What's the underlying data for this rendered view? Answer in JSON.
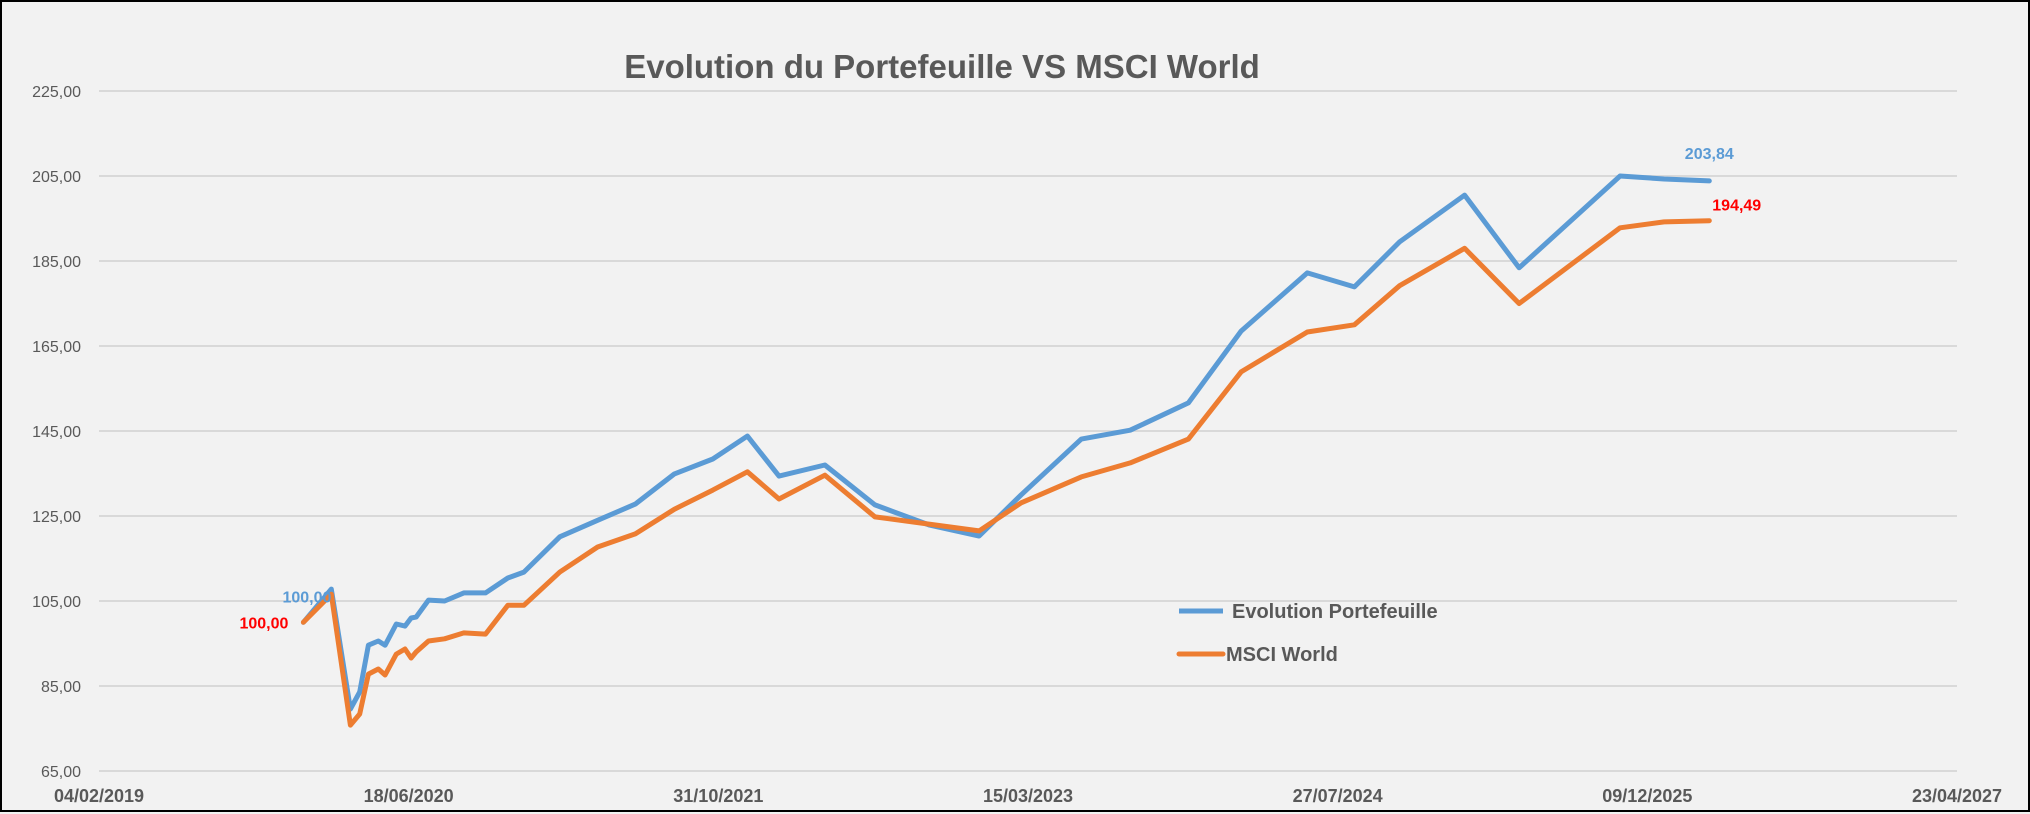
{
  "chart_data": {
    "type": "line",
    "title": "Evolution du Portefeuille VS MSCI World",
    "xlabel": "",
    "ylabel": "",
    "ylim": [
      65,
      225
    ],
    "xlim": [
      "04/02/2019",
      "23/04/2027"
    ],
    "y_ticks": [
      "65,00",
      "85,00",
      "105,00",
      "125,00",
      "145,00",
      "165,00",
      "185,00",
      "205,00",
      "225,00"
    ],
    "x_ticks": [
      "04/02/2019",
      "18/06/2020",
      "31/10/2021",
      "15/03/2023",
      "27/07/2024",
      "09/12/2025",
      "23/04/2027"
    ],
    "grid": "horizontal",
    "legend_position": "center-right",
    "x": [
      "31/12/2019",
      "14/02/2020",
      "16/03/2020",
      "31/03/2020",
      "14/04/2020",
      "30/04/2020",
      "11/05/2020",
      "29/05/2020",
      "12/06/2020",
      "22/06/2020",
      "30/06/2020",
      "20/07/2020",
      "15/08/2020",
      "15/09/2020",
      "20/10/2020",
      "25/11/2020",
      "21/12/2020",
      "17/02/2021",
      "19/04/2021",
      "19/06/2021",
      "21/08/2021",
      "22/10/2021",
      "17/12/2021",
      "06/02/2022",
      "21/04/2022",
      "11/07/2022",
      "06/10/2022",
      "26/12/2022",
      "04/03/2023",
      "09/06/2023",
      "27/08/2023",
      "29/11/2023",
      "22/02/2024",
      "08/06/2024",
      "23/08/2024",
      "04/11/2024",
      "17/02/2025",
      "16/05/2025",
      "26/10/2025",
      "05/01/2026",
      "19/03/2026"
    ],
    "series": [
      {
        "name": "Evolution Portefeuille",
        "color": "#5b9bd5",
        "values": [
          100,
          107.8,
          79.6,
          83.6,
          94.6,
          95.6,
          94.6,
          99.6,
          99.1,
          101,
          101.2,
          105.2,
          105,
          106.9,
          106.9,
          110.4,
          111.8,
          120.1,
          124,
          127.8,
          134.9,
          138.4,
          143.8,
          134.4,
          137,
          127.6,
          122.9,
          120.3,
          130,
          143.1,
          145.2,
          151.6,
          168.5,
          182.2,
          178.9,
          189.5,
          200.5,
          183.4,
          205,
          204.3,
          203.84
        ],
        "data_labels": [
          {
            "index": 0,
            "text": "100,00",
            "color": "#5b9bd5"
          },
          {
            "index": 40,
            "text": "203,84",
            "color": "#5b9bd5"
          }
        ]
      },
      {
        "name": "MSCI World",
        "color": "#ed7d31",
        "values": [
          100,
          106.6,
          75.8,
          78.4,
          87.8,
          89,
          87.6,
          92.5,
          93.7,
          91.6,
          93,
          95.6,
          96.1,
          97.5,
          97.2,
          104,
          104,
          111.8,
          117.7,
          120.8,
          126.6,
          131.1,
          135.4,
          129,
          134.6,
          124.8,
          123.1,
          121.5,
          128.1,
          134.2,
          137.5,
          143.1,
          158.9,
          168.3,
          170,
          179.2,
          188,
          175,
          192.8,
          194.2,
          194.49
        ],
        "data_labels": [
          {
            "index": 0,
            "text": "100,00",
            "color": "#ff0000"
          },
          {
            "index": 40,
            "text": "194,49",
            "color": "#ff0000"
          }
        ]
      }
    ]
  }
}
